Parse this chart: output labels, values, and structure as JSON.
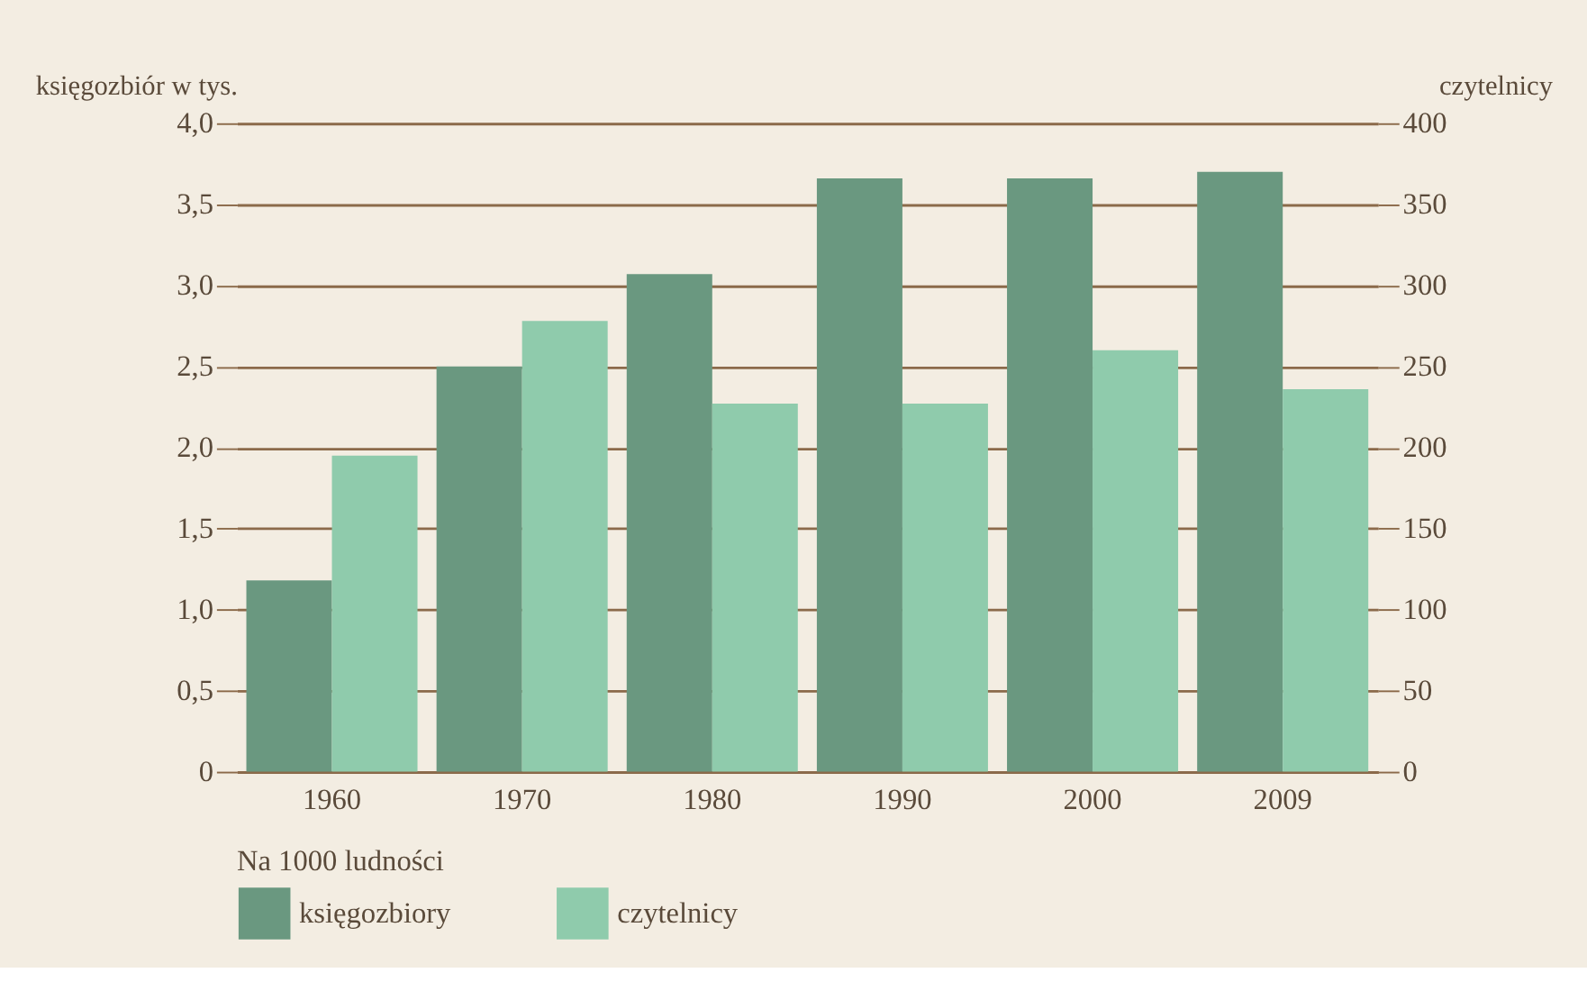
{
  "chart_data": {
    "type": "bar",
    "ylabel": "księgozbiór w tys.",
    "y2label": "czytelnicy",
    "legend_title": "Na 1000 ludności",
    "categories": [
      "1960",
      "1970",
      "1980",
      "1990",
      "2000",
      "2009"
    ],
    "series": [
      {
        "name": "księgozbiory",
        "color": "#6a9880",
        "values": [
          1.18,
          2.5,
          3.07,
          3.66,
          3.66,
          3.7
        ]
      },
      {
        "name": "czytelnicy",
        "color": "#8fcbac",
        "axis": "y2",
        "values": [
          195,
          278,
          227,
          227,
          260,
          236
        ]
      }
    ],
    "ylim": [
      0,
      4
    ],
    "yticks": [
      0,
      {
        "value": 0.5,
        "label": "0,5"
      },
      {
        "value": 1,
        "label": "1,0"
      },
      {
        "value": 1.5,
        "label": "1,5"
      },
      {
        "value": 2,
        "label": "2,0"
      },
      {
        "value": 2.5,
        "label": "2,5"
      },
      {
        "value": 3,
        "label": "3,0"
      },
      {
        "value": 3.5,
        "label": "3,5"
      },
      {
        "value": 4,
        "label": "4,0"
      }
    ],
    "y2lim": [
      0,
      400
    ],
    "y2ticks": [
      0,
      50,
      100,
      150,
      200,
      250,
      300,
      350,
      400
    ],
    "grid": "y",
    "legend": "bottom"
  }
}
